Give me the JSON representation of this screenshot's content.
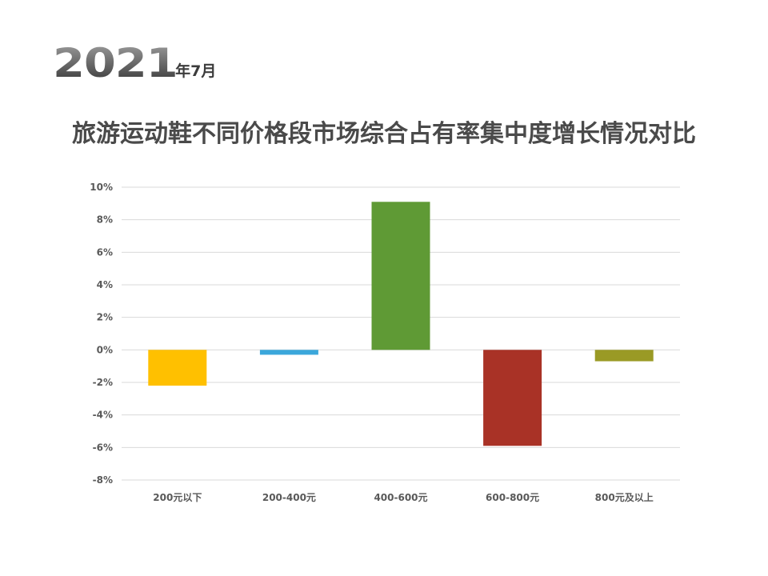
{
  "header": {
    "year": "2021",
    "month": "年7月"
  },
  "chart_data": {
    "type": "bar",
    "title": "旅游运动鞋不同价格段市场综合占有率集中度增长情况对比",
    "xlabel": "",
    "ylabel": "",
    "categories": [
      "200元以下",
      "200-400元",
      "400-600元",
      "600-800元",
      "800元及以上"
    ],
    "values": [
      -2.2,
      -0.3,
      9.1,
      -5.9,
      -0.7
    ],
    "colors": [
      "#FFC000",
      "#3BA7DB",
      "#5F9A35",
      "#A93226",
      "#9A9A25"
    ],
    "ylim": [
      -8,
      10
    ],
    "yticks": [
      10,
      8,
      6,
      4,
      2,
      0,
      -2,
      -4,
      -6,
      -8
    ],
    "ytick_labels": [
      "10%",
      "8%",
      "6%",
      "4%",
      "2%",
      "0%",
      "-2%",
      "-4%",
      "-6%",
      "-8%"
    ],
    "grid": true,
    "legend": "none"
  }
}
